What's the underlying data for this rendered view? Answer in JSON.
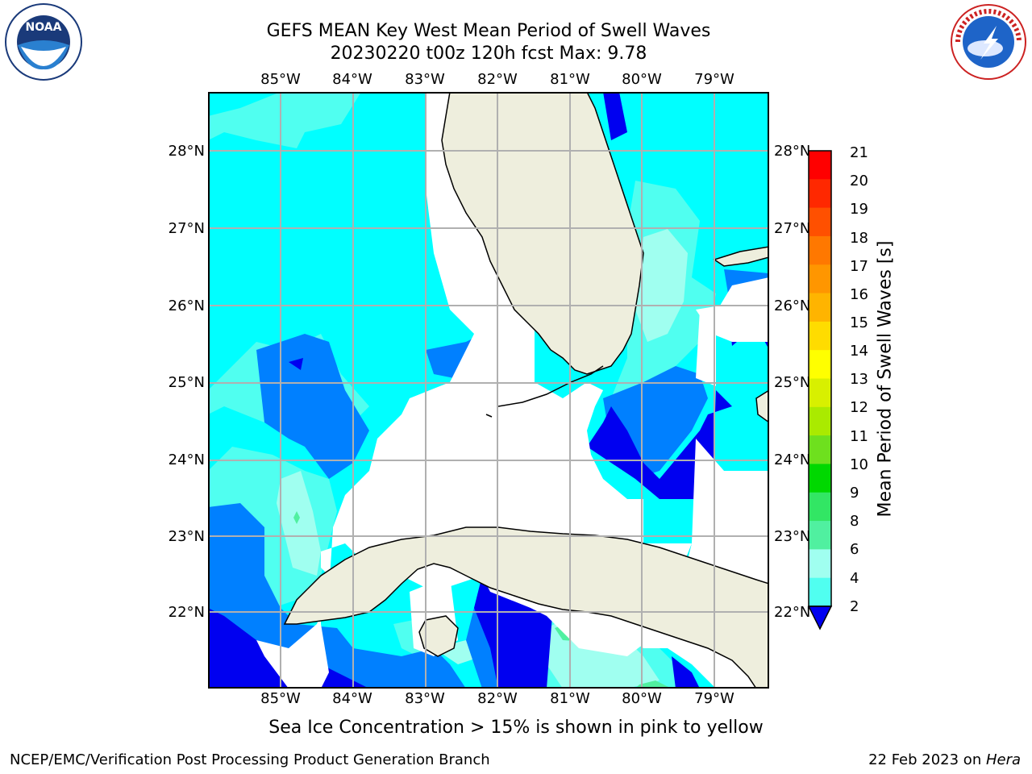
{
  "header": {
    "title_line1": "GEFS MEAN Key West Mean Period of Swell Waves",
    "title_line2": "20230220 t00z 120h fcst   Max: 9.78"
  },
  "map": {
    "lon_labels": [
      "85°W",
      "84°W",
      "83°W",
      "82°W",
      "81°W",
      "80°W",
      "79°W"
    ],
    "lat_labels": [
      "28°N",
      "27°N",
      "26°N",
      "25°N",
      "24°N",
      "23°N",
      "22°N"
    ],
    "land_color": "#eeeedd",
    "grid_color": "#b0b0b0"
  },
  "colorbar": {
    "label": "Mean Period of Swell Waves [s]",
    "ticks": [
      "21",
      "20",
      "19",
      "18",
      "17",
      "16",
      "15",
      "14",
      "13",
      "12",
      "11",
      "10",
      "9",
      "8",
      "6",
      "4",
      "2"
    ],
    "colors": [
      "#ff0000",
      "#ff2800",
      "#ff5000",
      "#ff7800",
      "#ff9600",
      "#ffb400",
      "#ffdc00",
      "#ffff00",
      "#d8f000",
      "#aaea00",
      "#6ee01e",
      "#00d800",
      "#32e664",
      "#50f0a0",
      "#a0fff0",
      "#50fff0",
      "#00ffff",
      "#0080ff",
      "#0000f0"
    ]
  },
  "footer": {
    "note": "Sea Ice Concentration > 15% is shown in pink to yellow",
    "credit": "NCEP/EMC/Verification Post Processing Product Generation Branch",
    "date_prefix": "22 Feb 2023 on ",
    "date_machine": "Hera"
  },
  "logos": {
    "noaa_text": "NOAA",
    "nws_text": "NATIONAL WEATHER SERVICE"
  }
}
